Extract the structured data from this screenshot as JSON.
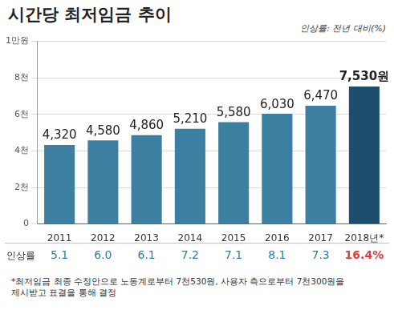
{
  "chart_data": {
    "type": "bar",
    "title": "시간당 최저임금 추이",
    "subtitle": "인상률: 전년 대비(%)",
    "categories": [
      "2011",
      "2012",
      "2013",
      "2014",
      "2015",
      "2016",
      "2017",
      "2018년*"
    ],
    "values": [
      4320,
      4580,
      4860,
      5210,
      5580,
      6030,
      6470,
      7530
    ],
    "value_labels": [
      "4,320",
      "4,580",
      "4,860",
      "5,210",
      "5,580",
      "6,030",
      "6,470",
      "7,530원"
    ],
    "colors": [
      "#3d7fa0",
      "#3d7fa0",
      "#3d7fa0",
      "#3d7fa0",
      "#3d7fa0",
      "#3d7fa0",
      "#3d7fa0",
      "#1d4e6e"
    ],
    "ylim": [
      0,
      10000
    ],
    "yticks": [
      0,
      {
        "value": 2000,
        "label": "2천"
      },
      {
        "value": 4000,
        "label": "4천"
      },
      {
        "value": 6000,
        "label": "6천"
      },
      {
        "value": 8000,
        "label": "8천"
      },
      {
        "value": 10000,
        "label": "1만원"
      }
    ],
    "grid": true,
    "data_labels": true,
    "legend": "none",
    "rate_title": "인상률",
    "rates": [
      5.1,
      6.0,
      6.1,
      7.2,
      7.1,
      8.1,
      7.3,
      16.4
    ],
    "rate_labels": [
      "5.1",
      "6.0",
      "6.1",
      "7.2",
      "7.1",
      "8.1",
      "7.3",
      "16.4%"
    ],
    "footnote": [
      "*최저임금 최종 수정안으로 노동계로부터 7천530원, 사용자 측으로부터 7천300원을",
      "제시받고 표결을 통해 결정"
    ]
  }
}
